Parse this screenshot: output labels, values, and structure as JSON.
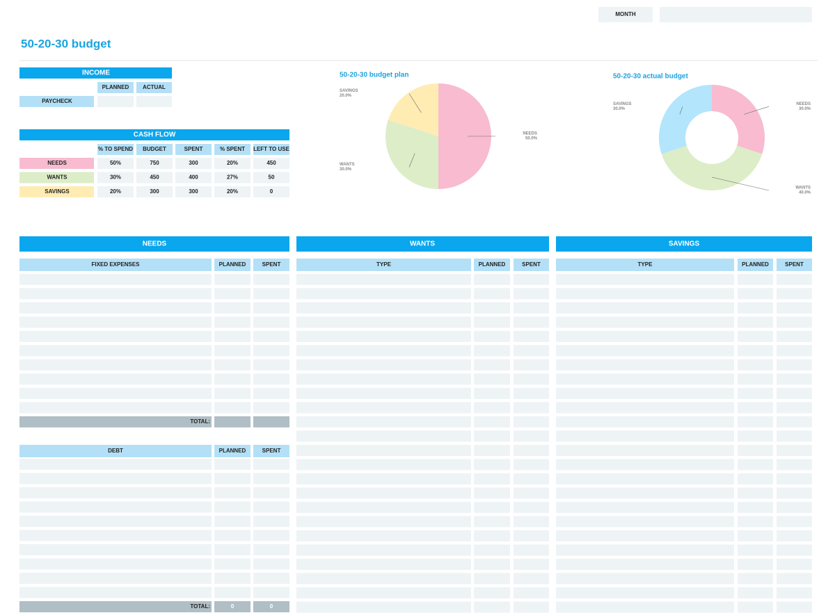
{
  "header": {
    "month_label": "MONTH",
    "title": "50-20-30 budget"
  },
  "income": {
    "title": "INCOME",
    "columns": [
      "PLANNED",
      "ACTUAL"
    ],
    "row_label": "PAYCHECK"
  },
  "cash_flow": {
    "title": "CASH FLOW",
    "columns": [
      "% TO SPEND",
      "BUDGET",
      "SPENT",
      "% SPENT",
      "LEFT TO USE"
    ],
    "rows": [
      [
        "NEEDS",
        "50%",
        "750",
        "300",
        "20%",
        "450"
      ],
      [
        "WANTS",
        "30%",
        "450",
        "400",
        "27%",
        "50"
      ],
      [
        "SAVINGS",
        "20%",
        "300",
        "300",
        "20%",
        "0"
      ]
    ],
    "row_colors": [
      "#f8bbd0",
      "#dcedc8",
      "#ffecb3"
    ]
  },
  "chart_data": [
    {
      "type": "pie",
      "title": "50-20-30 budget plan",
      "categories": [
        "NEEDS",
        "WANTS",
        "SAVINGS"
      ],
      "values": [
        50,
        30,
        20
      ],
      "value_labels": [
        "50.0%",
        "30.0%",
        "20.0%"
      ],
      "colors": [
        "#f8bbd0",
        "#dcedc8",
        "#ffecb3"
      ]
    },
    {
      "type": "donut",
      "title": "50-20-30 actual budget",
      "categories": [
        "NEEDS",
        "WANTS",
        "SAVINGS"
      ],
      "values": [
        30,
        40,
        30
      ],
      "value_labels": [
        "30.0%",
        "40.0%",
        "30.0%"
      ],
      "colors": [
        "#f8bbd0",
        "#dcedc8",
        "#b3e5fc"
      ]
    }
  ],
  "needs": {
    "title": "NEEDS",
    "fixed_columns": [
      "FIXED EXPENSES",
      "PLANNED",
      "SPENT"
    ],
    "fixed_total_label": "TOTAL:",
    "debt_columns": [
      "DEBT",
      "PLANNED",
      "SPENT"
    ],
    "debt_total_label": "TOTAL:",
    "debt_totals": [
      "0",
      "0"
    ]
  },
  "wants": {
    "title": "WANTS",
    "columns": [
      "TYPE",
      "PLANNED",
      "SPENT"
    ]
  },
  "savings": {
    "title": "SAVINGS",
    "columns": [
      "TYPE",
      "PLANNED",
      "SPENT"
    ]
  }
}
